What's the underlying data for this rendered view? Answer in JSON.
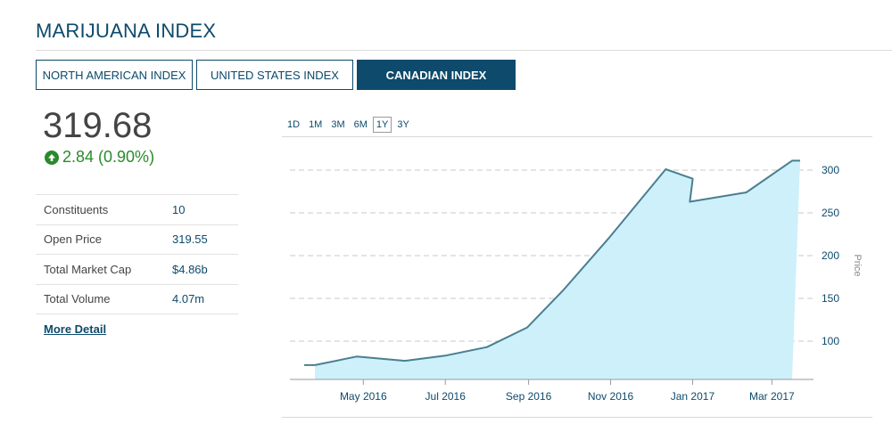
{
  "page": {
    "title": "MARIJUANA INDEX"
  },
  "tabs": [
    {
      "label": "NORTH AMERICAN INDEX",
      "active": false
    },
    {
      "label": "UNITED STATES INDEX",
      "active": false
    },
    {
      "label": "CANADIAN INDEX",
      "active": true
    }
  ],
  "quote": {
    "price": "319.68",
    "change": "2.84 (0.90%)",
    "direction": "up"
  },
  "stats": [
    {
      "label": "Constituents",
      "value": "10"
    },
    {
      "label": "Open Price",
      "value": "319.55"
    },
    {
      "label": "Total Market Cap",
      "value": "$4.86b"
    },
    {
      "label": "Total Volume",
      "value": "4.07m"
    }
  ],
  "more_detail": "More Detail",
  "ranges": [
    {
      "label": "1D",
      "active": false
    },
    {
      "label": "1M",
      "active": false
    },
    {
      "label": "3M",
      "active": false
    },
    {
      "label": "6M",
      "active": false
    },
    {
      "label": "1Y",
      "active": true
    },
    {
      "label": "3Y",
      "active": false
    }
  ],
  "colors": {
    "brand": "#0d4a6b",
    "positive": "#2a8a2a",
    "line": "#4a7f8f",
    "fill": "#cdf0fb"
  },
  "chart_data": {
    "type": "area",
    "xlabel": "",
    "ylabel": "Price",
    "x_tick_labels": [
      "May 2016",
      "Jul 2016",
      "Sep 2016",
      "Nov 2016",
      "Jan 2017",
      "Mar 2017"
    ],
    "x_tick_dates": [
      "2016-05-01",
      "2016-07-01",
      "2016-09-01",
      "2016-11-01",
      "2017-01-01",
      "2017-03-01"
    ],
    "y_ticks": [
      100,
      150,
      200,
      250,
      300
    ],
    "ylim": [
      60,
      320
    ],
    "xlim": [
      "2016-03-18",
      "2017-03-22"
    ],
    "grid": "horizontal dashed",
    "y_axis_side": "right",
    "points": [
      {
        "x": "2016-03-18",
        "y": 72
      },
      {
        "x": "2016-03-26",
        "y": 72
      },
      {
        "x": "2016-04-26",
        "y": 82
      },
      {
        "x": "2016-06-01",
        "y": 77
      },
      {
        "x": "2016-07-01",
        "y": 83
      },
      {
        "x": "2016-08-01",
        "y": 93
      },
      {
        "x": "2016-08-31",
        "y": 116
      },
      {
        "x": "2016-09-27",
        "y": 160
      },
      {
        "x": "2016-10-31",
        "y": 221
      },
      {
        "x": "2016-12-12",
        "y": 301
      },
      {
        "x": "2017-01-01",
        "y": 290
      },
      {
        "x": "2017-01-01",
        "y": 289
      },
      {
        "x": "2016-12-30",
        "y": 263
      },
      {
        "x": "2017-02-10",
        "y": 274
      },
      {
        "x": "2017-03-16",
        "y": 311
      },
      {
        "x": "2017-03-22",
        "y": 311
      }
    ]
  }
}
